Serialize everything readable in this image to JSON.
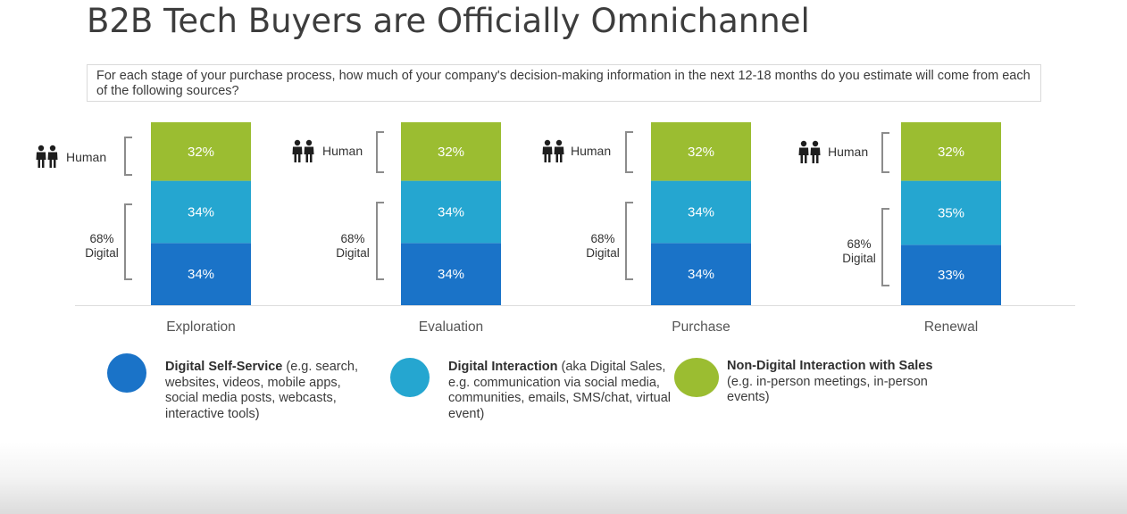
{
  "title": "B2B Tech Buyers are Officially Omnichannel",
  "question": "For each stage of your purchase process, how much of your company's decision-making information in the next 12-18 months do you estimate will come from each of the following sources?",
  "colors": {
    "self_service": "#1a73c8",
    "digital_interaction": "#25a6d0",
    "non_digital": "#9bbd31"
  },
  "labels": {
    "human": "Human",
    "digital_pct": "68%",
    "digital": "Digital"
  },
  "icons": {
    "human": "people-icon"
  },
  "chart_data": {
    "type": "bar",
    "stacked": true,
    "categories": [
      "Exploration",
      "Evaluation",
      "Purchase",
      "Renewal"
    ],
    "series": [
      {
        "name": "Digital Self-Service",
        "values": [
          34,
          34,
          34,
          33
        ],
        "labels": [
          "34%",
          "34%",
          "34%",
          "33%"
        ]
      },
      {
        "name": "Digital Interaction",
        "values": [
          34,
          34,
          34,
          35
        ],
        "labels": [
          "34%",
          "34%",
          "34%",
          "35%"
        ]
      },
      {
        "name": "Non-Digital Interaction with Sales",
        "values": [
          32,
          32,
          32,
          32
        ],
        "labels": [
          "32%",
          "32%",
          "32%",
          "32%"
        ]
      }
    ],
    "ylim": [
      0,
      100
    ],
    "grid": false
  },
  "legend": [
    {
      "bold": "Digital Self-Service",
      "text": " (e.g. search, websites, videos, mobile apps, social media posts, webcasts, interactive tools)"
    },
    {
      "bold": "Digital Interaction",
      "text": " (aka Digital Sales, e.g. communication via social media, communities, emails, SMS/chat, virtual event)"
    },
    {
      "bold": "Non-Digital Interaction with Sales",
      "text": " (e.g. in-person meetings, in-person events)"
    }
  ]
}
